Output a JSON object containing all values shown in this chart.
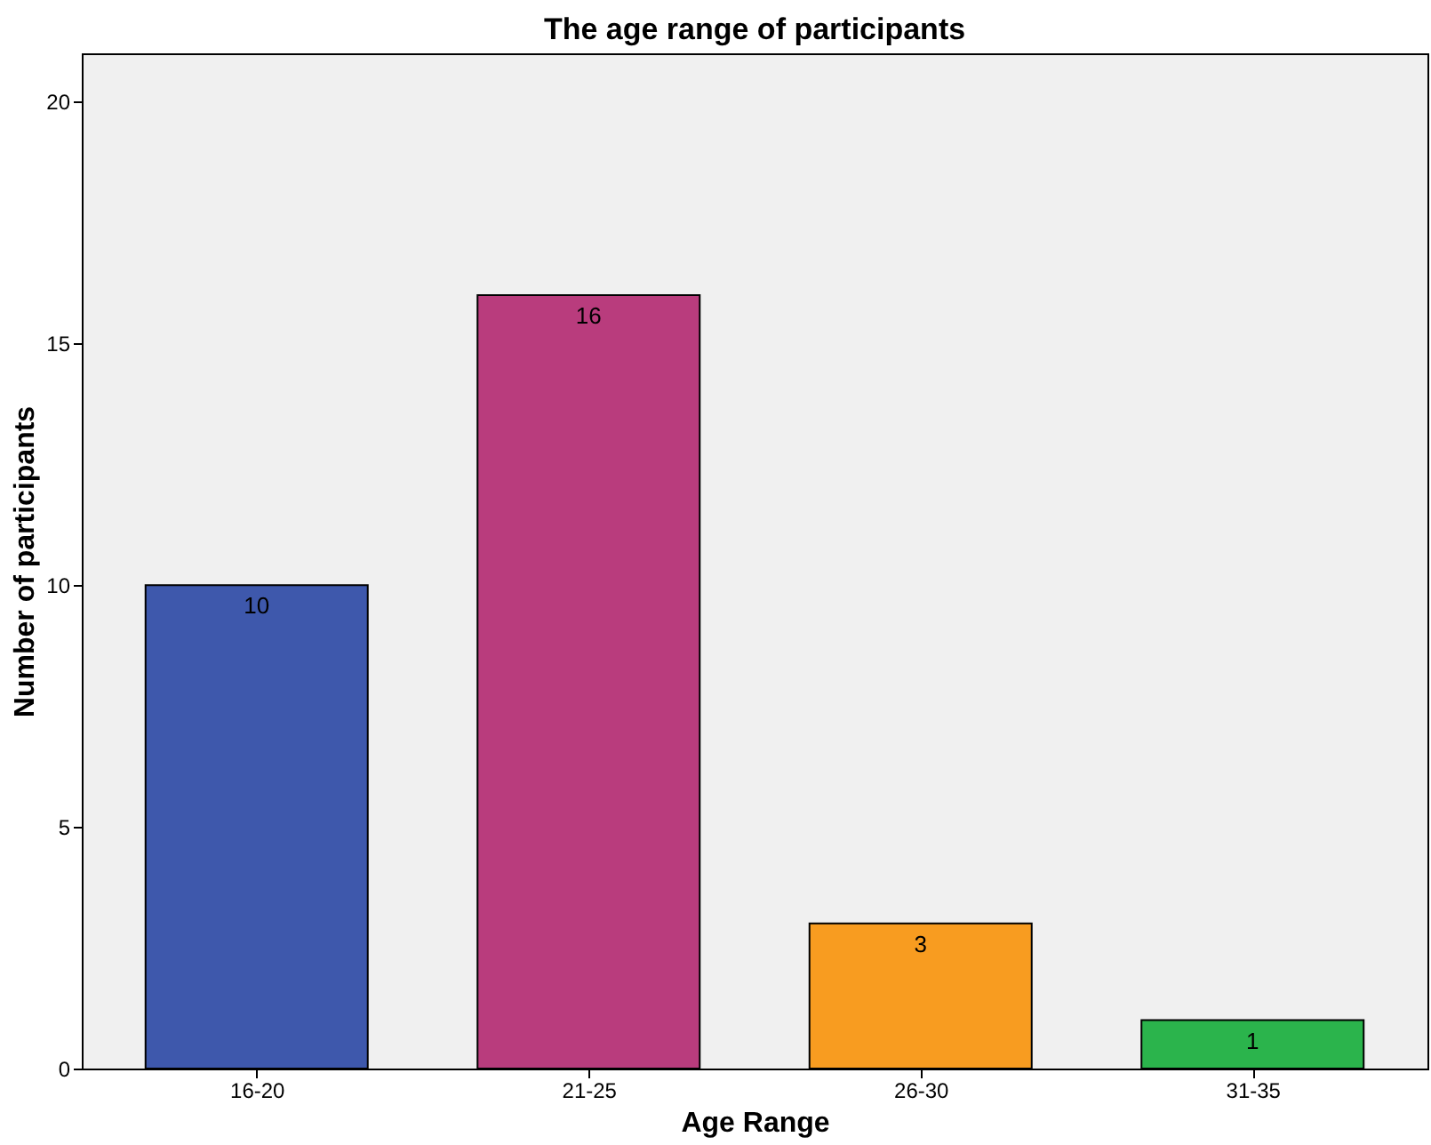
{
  "chart_data": {
    "type": "bar",
    "title": "The age range of participants",
    "xlabel": "Age Range",
    "ylabel": "Number of participants",
    "categories": [
      "16-20",
      "21-25",
      "26-30",
      "31-35"
    ],
    "values": [
      10,
      16,
      3,
      1
    ],
    "colors": [
      "#3e58ac",
      "#b93c7d",
      "#f89c20",
      "#2bb44c"
    ],
    "ylim": [
      0,
      21
    ],
    "yticks": [
      0,
      5,
      10,
      15,
      20
    ],
    "grid": false,
    "data_labels": true
  }
}
